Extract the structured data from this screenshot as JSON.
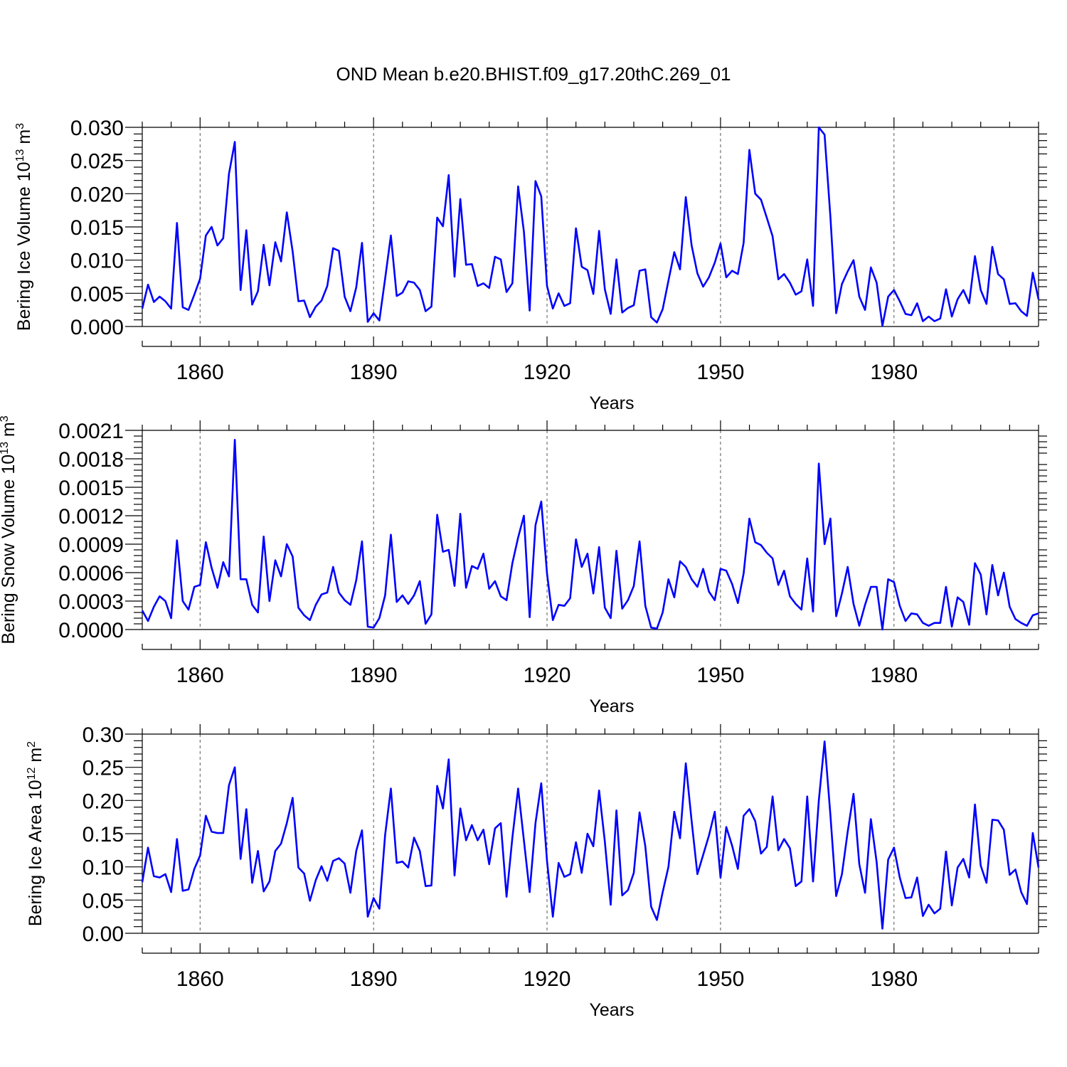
{
  "title": "OND Mean b.e20.BHIST.f09_g17.20thC.269_01",
  "series_color": "#0000ff",
  "chart_data": [
    {
      "type": "line",
      "name": "ice-volume",
      "ylabel_main": "Bering Ice Volume 10",
      "ylabel_exp": "13",
      "ylabel_unit": " m",
      "ylabel_unit_exp": "3",
      "xlabel": "Years",
      "xlim": [
        1850,
        2005
      ],
      "ylim": [
        0,
        0.03
      ],
      "grid": "dashed vertical at labeled years",
      "xticks": [
        1860,
        1890,
        1920,
        1950,
        1980
      ],
      "xtick_labels": [
        "1860",
        "1890",
        "1920",
        "1950",
        "1980"
      ],
      "yticks": [
        0,
        0.005,
        0.01,
        0.015,
        0.02,
        0.025,
        0.03
      ],
      "ytick_labels": [
        "0.000",
        "0.005",
        "0.010",
        "0.015",
        "0.020",
        "0.025",
        "0.030"
      ],
      "x_start": 1850,
      "values": [
        0.0027,
        0.0063,
        0.0037,
        0.0045,
        0.0038,
        0.0027,
        0.0156,
        0.0029,
        0.0025,
        0.0048,
        0.0072,
        0.0137,
        0.015,
        0.0122,
        0.0133,
        0.023,
        0.0278,
        0.0055,
        0.0145,
        0.0033,
        0.0053,
        0.0123,
        0.0062,
        0.0127,
        0.0098,
        0.0172,
        0.0113,
        0.0038,
        0.0039,
        0.0014,
        0.003,
        0.0039,
        0.0061,
        0.0118,
        0.0114,
        0.0045,
        0.0023,
        0.0059,
        0.0126,
        0.0007,
        0.002,
        0.0009,
        0.0072,
        0.0137,
        0.0046,
        0.0051,
        0.0068,
        0.0066,
        0.0055,
        0.0023,
        0.003,
        0.0164,
        0.0151,
        0.0228,
        0.0075,
        0.0192,
        0.0093,
        0.0094,
        0.0061,
        0.0065,
        0.0058,
        0.0105,
        0.0101,
        0.0052,
        0.0065,
        0.0211,
        0.0143,
        0.0024,
        0.0219,
        0.0196,
        0.0061,
        0.0027,
        0.005,
        0.0031,
        0.0035,
        0.0148,
        0.009,
        0.0085,
        0.0049,
        0.0144,
        0.0056,
        0.0019,
        0.0101,
        0.0021,
        0.0028,
        0.0032,
        0.0084,
        0.0086,
        0.0014,
        0.0006,
        0.0026,
        0.0069,
        0.0112,
        0.0086,
        0.0195,
        0.0122,
        0.008,
        0.006,
        0.0074,
        0.0096,
        0.0125,
        0.0074,
        0.0084,
        0.0079,
        0.0126,
        0.0266,
        0.02,
        0.0191,
        0.0164,
        0.0136,
        0.0071,
        0.0079,
        0.0066,
        0.0048,
        0.0053,
        0.0101,
        0.0031,
        0.03,
        0.0289,
        0.0165,
        0.002,
        0.0064,
        0.0083,
        0.01,
        0.0045,
        0.0025,
        0.0089,
        0.0066,
        0.0001,
        0.0045,
        0.0055,
        0.0038,
        0.0019,
        0.0017,
        0.0035,
        0.0008,
        0.0015,
        0.0008,
        0.0012,
        0.0056,
        0.0015,
        0.0041,
        0.0055,
        0.0035,
        0.0106,
        0.0055,
        0.0034,
        0.012,
        0.0079,
        0.0071,
        0.0034,
        0.0035,
        0.0023,
        0.0016,
        0.0081,
        0.0041
      ]
    },
    {
      "type": "line",
      "name": "snow-volume",
      "ylabel_main": "Bering Snow Volume 10",
      "ylabel_exp": "13",
      "ylabel_unit": " m",
      "ylabel_unit_exp": "3",
      "xlabel": "Years",
      "xlim": [
        1850,
        2005
      ],
      "ylim": [
        0,
        0.0021
      ],
      "grid": "dashed vertical at labeled years",
      "xticks": [
        1860,
        1890,
        1920,
        1950,
        1980
      ],
      "xtick_labels": [
        "1860",
        "1890",
        "1920",
        "1950",
        "1980"
      ],
      "yticks": [
        0,
        0.0003,
        0.0006,
        0.0009,
        0.0012,
        0.0015,
        0.0018,
        0.0021
      ],
      "ytick_labels": [
        "0.0000",
        "0.0003",
        "0.0006",
        "0.0009",
        "0.0012",
        "0.0015",
        "0.0018",
        "0.0021"
      ],
      "x_start": 1850,
      "values": [
        0.0002,
        9e-05,
        0.00024,
        0.00035,
        0.0003,
        0.00012,
        0.00094,
        0.0003,
        0.00021,
        0.00045,
        0.00047,
        0.00092,
        0.00065,
        0.00044,
        0.00071,
        0.00056,
        0.002,
        0.00053,
        0.00053,
        0.00026,
        0.00018,
        0.00098,
        0.0003,
        0.00073,
        0.00056,
        0.0009,
        0.00077,
        0.00023,
        0.00015,
        0.0001,
        0.00026,
        0.00037,
        0.00039,
        0.00066,
        0.00039,
        0.00031,
        0.00026,
        0.00052,
        0.00093,
        3e-05,
        2e-05,
        0.00012,
        0.00036,
        0.001,
        0.00029,
        0.00036,
        0.00027,
        0.00036,
        0.00051,
        6e-05,
        0.00016,
        0.00121,
        0.00082,
        0.00084,
        0.00046,
        0.00122,
        0.00044,
        0.00067,
        0.00064,
        0.0008,
        0.00043,
        0.00051,
        0.00035,
        0.00031,
        0.0007,
        0.00097,
        0.0012,
        0.00013,
        0.0011,
        0.00135,
        0.00059,
        0.0001,
        0.00026,
        0.00025,
        0.00033,
        0.00095,
        0.00066,
        0.0008,
        0.00038,
        0.00087,
        0.00023,
        0.00012,
        0.00083,
        0.00022,
        0.00031,
        0.00046,
        0.00093,
        0.00025,
        2e-05,
        1e-05,
        0.00018,
        0.00053,
        0.00034,
        0.00072,
        0.00066,
        0.00053,
        0.00045,
        0.00064,
        0.0004,
        0.00031,
        0.00064,
        0.00062,
        0.00048,
        0.00028,
        0.00059,
        0.00117,
        0.00092,
        0.00089,
        0.00081,
        0.00075,
        0.00047,
        0.00062,
        0.00035,
        0.00027,
        0.00021,
        0.00075,
        0.00019,
        0.00175,
        0.0009,
        0.00117,
        0.00014,
        0.00038,
        0.00066,
        0.00027,
        4e-05,
        0.00026,
        0.00045,
        0.00045,
        0.0,
        0.00053,
        0.0005,
        0.00025,
        9e-05,
        0.00017,
        0.00016,
        7e-05,
        4e-05,
        7e-05,
        7e-05,
        0.00045,
        3e-05,
        0.00034,
        0.00029,
        5e-05,
        0.0007,
        0.00058,
        0.00016,
        0.00068,
        0.00036,
        0.0006,
        0.00024,
        0.00011,
        7e-05,
        4e-05,
        0.00015,
        0.00017
      ]
    },
    {
      "type": "line",
      "name": "ice-area",
      "ylabel_main": "Bering Ice Area 10",
      "ylabel_exp": "12",
      "ylabel_unit": " m",
      "ylabel_unit_exp": "2",
      "xlabel": "Years",
      "xlim": [
        1850,
        2005
      ],
      "ylim": [
        0,
        0.3
      ],
      "grid": "dashed vertical at labeled years",
      "xticks": [
        1860,
        1890,
        1920,
        1950,
        1980
      ],
      "xtick_labels": [
        "1860",
        "1890",
        "1920",
        "1950",
        "1980"
      ],
      "yticks": [
        0,
        0.05,
        0.1,
        0.15,
        0.2,
        0.25,
        0.3
      ],
      "ytick_labels": [
        "0.00",
        "0.05",
        "0.10",
        "0.15",
        "0.20",
        "0.25",
        "0.30"
      ],
      "x_start": 1850,
      "values": [
        0.077,
        0.129,
        0.086,
        0.084,
        0.089,
        0.062,
        0.142,
        0.064,
        0.066,
        0.097,
        0.117,
        0.177,
        0.153,
        0.151,
        0.151,
        0.223,
        0.25,
        0.112,
        0.187,
        0.076,
        0.124,
        0.063,
        0.078,
        0.124,
        0.135,
        0.166,
        0.204,
        0.099,
        0.09,
        0.049,
        0.08,
        0.101,
        0.079,
        0.109,
        0.113,
        0.105,
        0.061,
        0.124,
        0.155,
        0.025,
        0.053,
        0.037,
        0.148,
        0.218,
        0.106,
        0.108,
        0.099,
        0.144,
        0.124,
        0.071,
        0.072,
        0.222,
        0.188,
        0.262,
        0.087,
        0.188,
        0.14,
        0.163,
        0.14,
        0.156,
        0.104,
        0.158,
        0.166,
        0.055,
        0.144,
        0.218,
        0.14,
        0.062,
        0.166,
        0.226,
        0.109,
        0.025,
        0.106,
        0.085,
        0.089,
        0.137,
        0.091,
        0.15,
        0.131,
        0.215,
        0.138,
        0.043,
        0.185,
        0.057,
        0.065,
        0.091,
        0.182,
        0.131,
        0.04,
        0.02,
        0.062,
        0.1,
        0.183,
        0.143,
        0.256,
        0.169,
        0.089,
        0.118,
        0.147,
        0.183,
        0.084,
        0.16,
        0.132,
        0.097,
        0.177,
        0.187,
        0.169,
        0.12,
        0.13,
        0.206,
        0.125,
        0.142,
        0.128,
        0.071,
        0.078,
        0.206,
        0.078,
        0.2,
        0.289,
        0.178,
        0.056,
        0.089,
        0.153,
        0.21,
        0.104,
        0.061,
        0.172,
        0.107,
        0.007,
        0.111,
        0.129,
        0.084,
        0.053,
        0.054,
        0.084,
        0.026,
        0.043,
        0.03,
        0.037,
        0.123,
        0.042,
        0.099,
        0.112,
        0.084,
        0.194,
        0.102,
        0.076,
        0.171,
        0.17,
        0.156,
        0.088,
        0.096,
        0.062,
        0.044,
        0.151,
        0.099
      ]
    }
  ]
}
